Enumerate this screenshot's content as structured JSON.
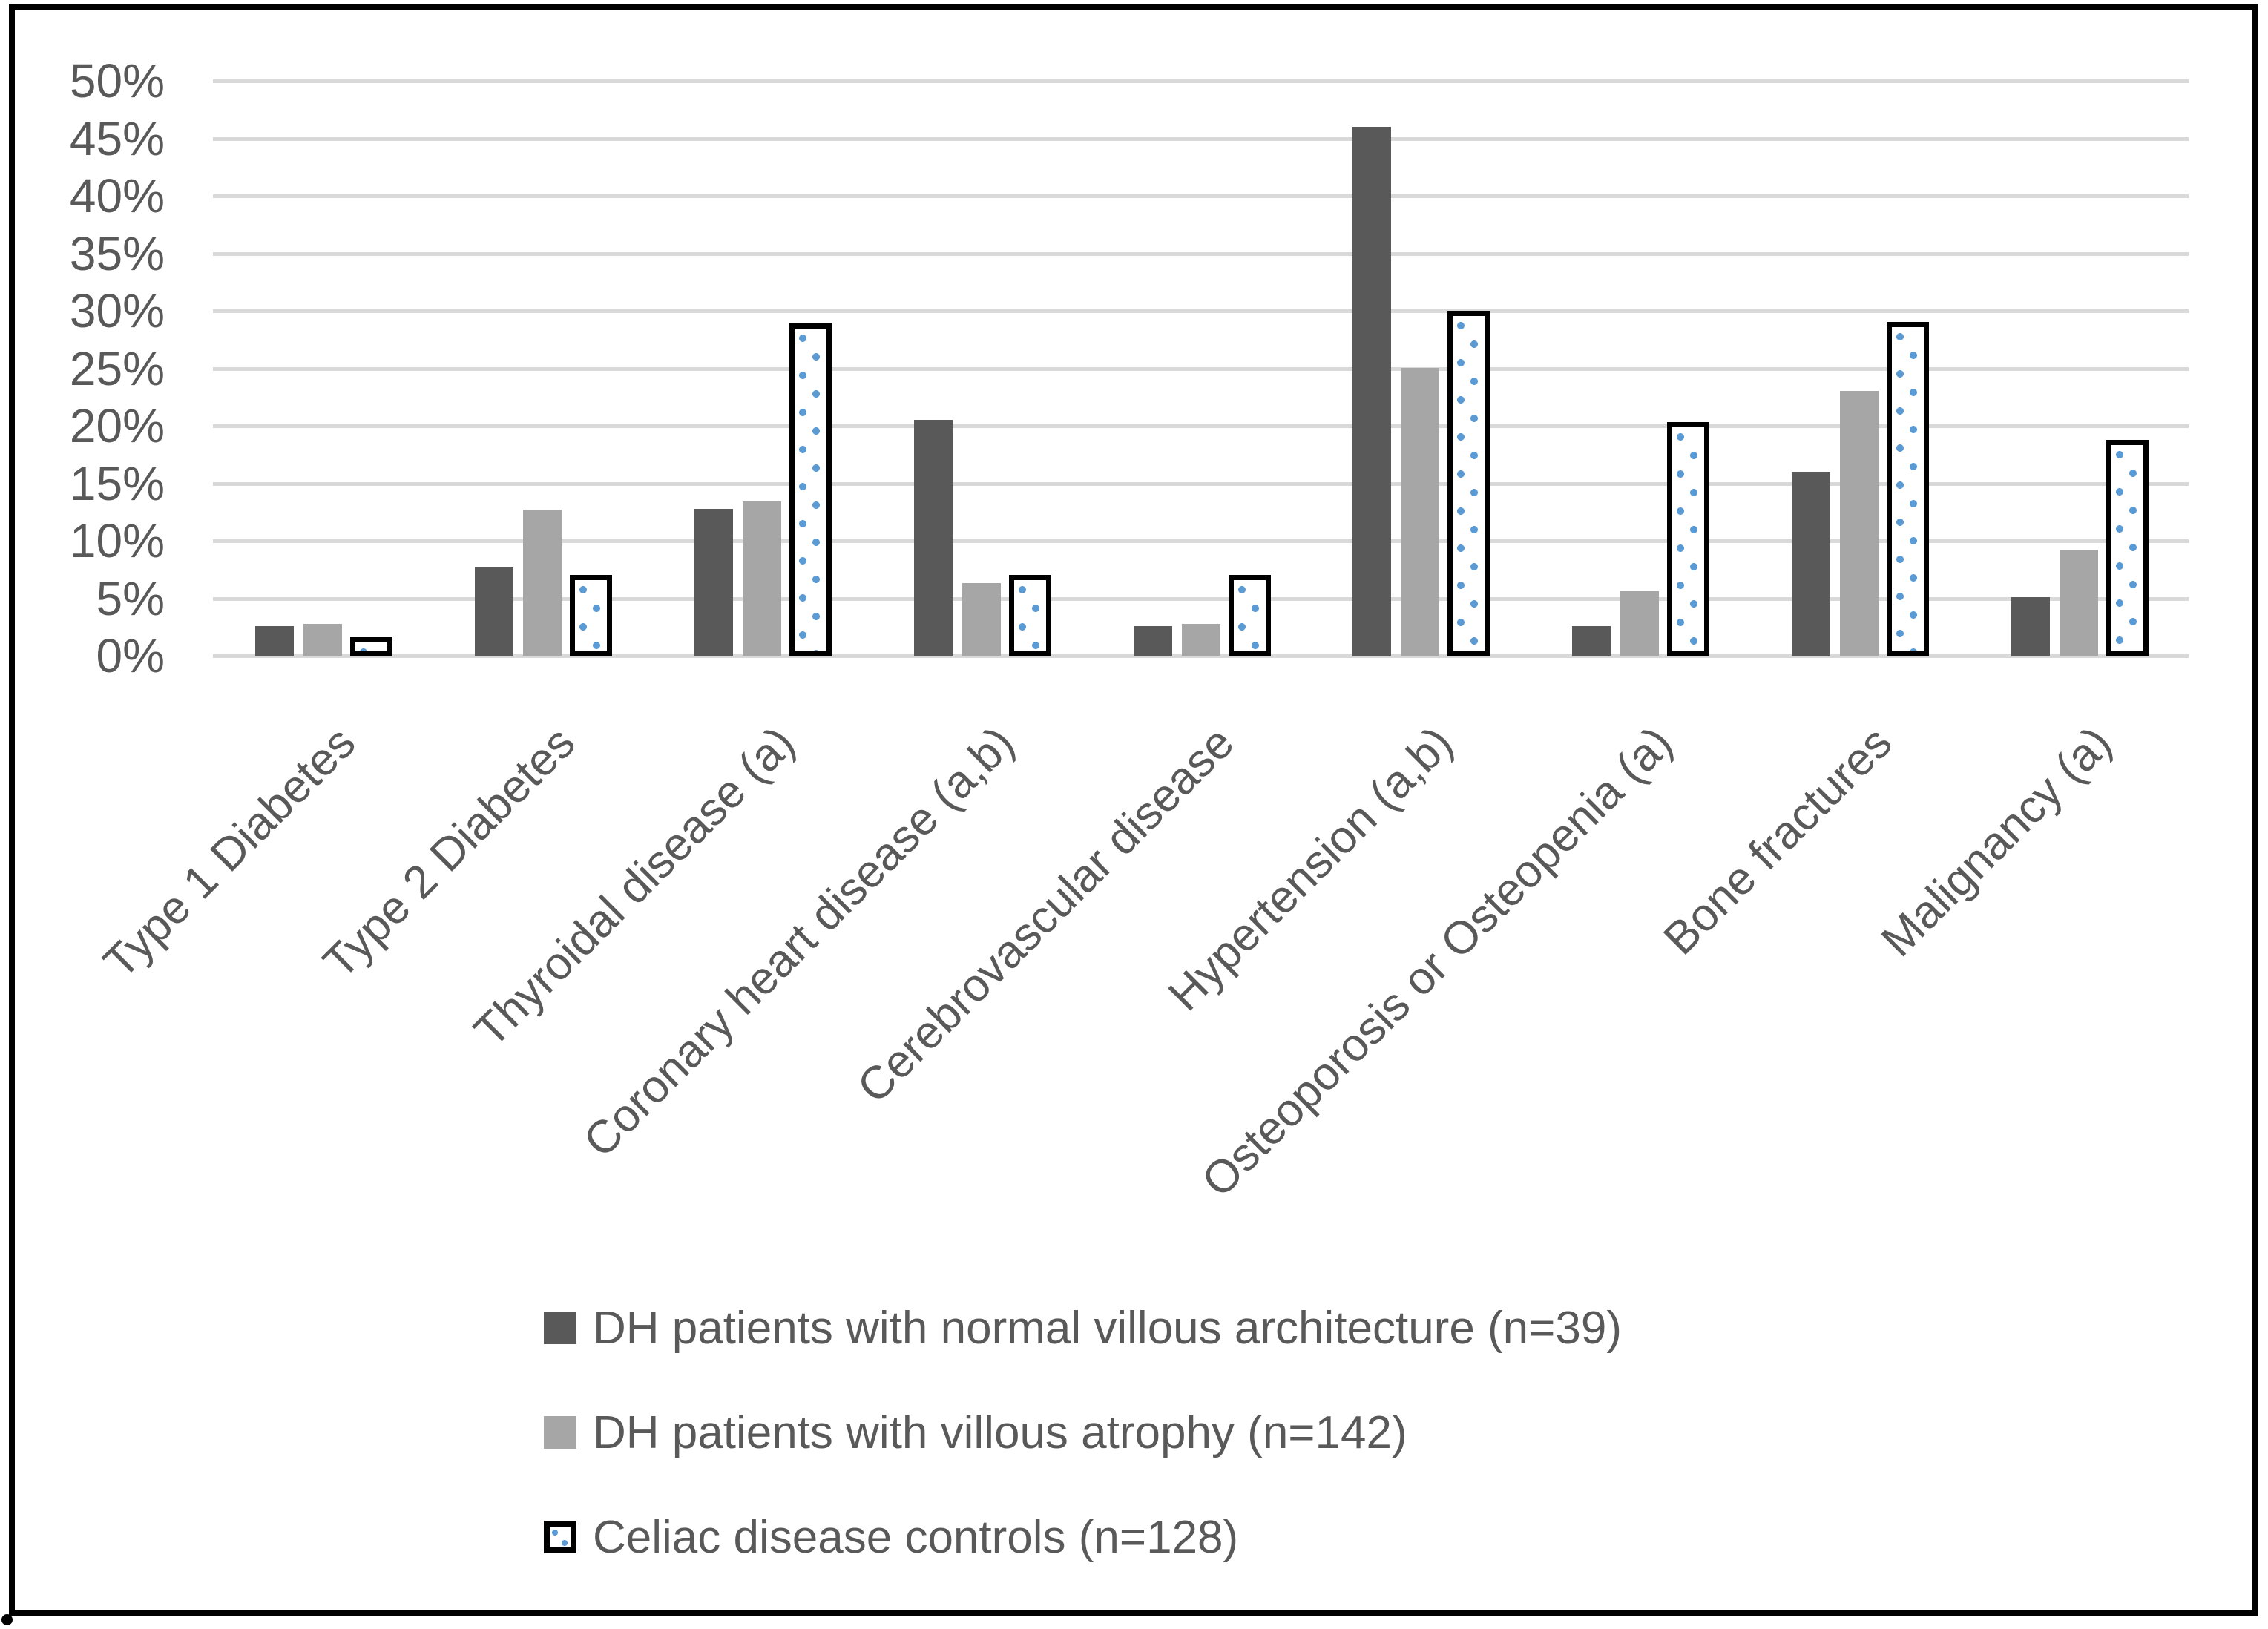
{
  "figure": {
    "corner_mark": ".",
    "background": "#ffffff",
    "frame_border_color": "#000000"
  },
  "chart_data": {
    "type": "bar",
    "title": "",
    "xlabel": "",
    "ylabel": "",
    "categories": [
      "Type 1 Diabetes",
      "Type 2 Diabetes",
      "Thyroidal disease (a)",
      "Coronary heart disease (a,b)",
      "Cerebrovascular disease",
      "Hypertension (a,b)",
      "Osteoporosis or Osteopenia (a)",
      "Bone fractures",
      "Malignancy (a)"
    ],
    "series": [
      {
        "name": "DH patients with normal villous architecture (n=39)",
        "values": [
          2.6,
          7.7,
          12.8,
          20.5,
          2.6,
          46,
          2.6,
          16,
          5.1
        ],
        "style": "solid-dark"
      },
      {
        "name": "DH patients with villous atrophy (n=142)",
        "values": [
          2.8,
          12.7,
          13.4,
          6.3,
          2.8,
          25,
          5.6,
          23,
          9.2
        ],
        "style": "solid-gray"
      },
      {
        "name": "Celiac disease controls (n=128)",
        "values": [
          1.6,
          7,
          28.9,
          7,
          7,
          30,
          20.3,
          29,
          18.8
        ],
        "style": "white-dotted-black-border"
      }
    ],
    "y_axis": {
      "min": 0,
      "max": 50,
      "step": 5,
      "tick_suffix": "%",
      "tick_labels": [
        "0%",
        "5%",
        "10%",
        "15%",
        "20%",
        "25%",
        "30%",
        "35%",
        "40%",
        "45%",
        "50%"
      ]
    },
    "grid": true,
    "legend_position": "bottom-left",
    "x_tick_rotation_deg": 45,
    "colors": {
      "dark": "#595959",
      "gray": "#a6a6a6",
      "dot": "#5b9bd5",
      "grid": "#d9d9d9",
      "text": "#595959",
      "border": "#000000"
    }
  }
}
